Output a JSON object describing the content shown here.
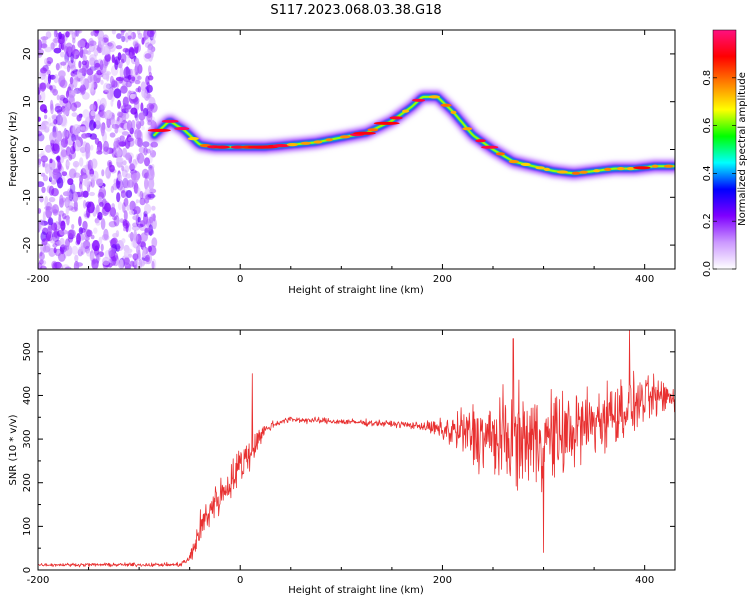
{
  "title": "S117.2023.068.03.38.G18",
  "chart_data": [
    {
      "type": "heatmap",
      "xlabel": "Height of straight line (km)",
      "ylabel": "Frequency (Hz)",
      "xlim": [
        -200,
        430
      ],
      "ylim": [
        -25,
        25
      ],
      "xticks": [
        -200,
        0,
        200,
        400
      ],
      "yticks": [
        -20,
        -10,
        0,
        10,
        20
      ],
      "colorbar": {
        "label": "Normalized spectral amplitude",
        "range": [
          0,
          1
        ],
        "ticks": [
          0.0,
          0.2,
          0.4,
          0.6,
          0.8
        ],
        "colors": [
          "#ffffff",
          "#cc99ff",
          "#7f00ff",
          "#0000ff",
          "#00ffff",
          "#00ff00",
          "#ffff00",
          "#ff8000",
          "#ff0000",
          "#ff1080"
        ]
      },
      "noise_region_x": [
        -200,
        -85
      ],
      "ridge": {
        "x": [
          -85,
          -70,
          -55,
          -40,
          -25,
          -10,
          0,
          25,
          50,
          75,
          100,
          125,
          150,
          170,
          180,
          195,
          210,
          230,
          250,
          270,
          290,
          310,
          330,
          350,
          370,
          390,
          410,
          430
        ],
        "freq": [
          3,
          6,
          4,
          1,
          0.5,
          0.5,
          0.5,
          0.5,
          1,
          1.5,
          2.5,
          3.5,
          6,
          9,
          11,
          11,
          8,
          3,
          0,
          -2.5,
          -3.5,
          -4.5,
          -5,
          -4.5,
          -4,
          -4,
          -3.5,
          -3.5
        ]
      }
    },
    {
      "type": "line",
      "xlabel": "Height of straight line (km)",
      "ylabel": "SNR (10 * v/v)",
      "xlim": [
        -200,
        430
      ],
      "ylim": [
        0,
        550
      ],
      "xticks": [
        -200,
        0,
        200,
        400
      ],
      "yticks": [
        0,
        100,
        200,
        300,
        400,
        500
      ],
      "color": "#e83030",
      "envelope": {
        "x": [
          -200,
          -60,
          -50,
          -40,
          -30,
          -20,
          -10,
          0,
          10,
          20,
          30,
          40,
          50,
          100,
          150,
          180,
          200,
          220,
          250,
          280,
          300,
          320,
          340,
          360,
          380,
          400,
          430
        ],
        "center": [
          12,
          12,
          25,
          90,
          140,
          170,
          200,
          240,
          270,
          310,
          330,
          340,
          345,
          340,
          335,
          330,
          320,
          315,
          300,
          300,
          300,
          310,
          330,
          350,
          370,
          390,
          400
        ],
        "spread": [
          4,
          5,
          15,
          45,
          55,
          45,
          45,
          55,
          45,
          25,
          12,
          8,
          8,
          8,
          8,
          10,
          30,
          70,
          110,
          120,
          120,
          110,
          100,
          90,
          80,
          60,
          40
        ]
      },
      "peaks": [
        {
          "x": 12,
          "y": 450
        },
        {
          "x": 270,
          "y": 530
        },
        {
          "x": 300,
          "y": 40
        },
        {
          "x": 385,
          "y": 550
        }
      ]
    }
  ]
}
